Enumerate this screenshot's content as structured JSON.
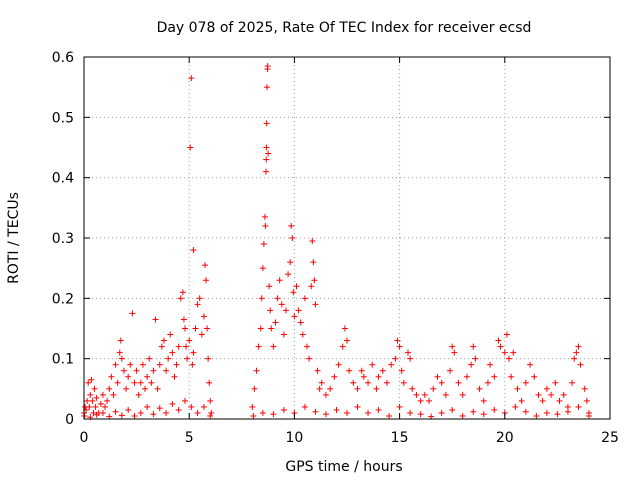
{
  "chart_data": {
    "type": "scatter",
    "title": "Day 078 of 2025, Rate Of TEC Index for receiver ecsd",
    "xlabel": "GPS time / hours",
    "ylabel": "ROTI / TECUs",
    "xlim": [
      0,
      25
    ],
    "ylim": [
      0,
      0.6
    ],
    "xticks": [
      0,
      5,
      10,
      15,
      20,
      25
    ],
    "xtick_labels": [
      "0",
      "5",
      "10",
      "15",
      "20",
      "25"
    ],
    "yticks": [
      0,
      0.1,
      0.2,
      0.3,
      0.4,
      0.5,
      0.6
    ],
    "ytick_labels": [
      "0",
      "0.1",
      "0.2",
      "0.3",
      "0.4",
      "0.5",
      "0.6"
    ],
    "grid": true,
    "marker": "+",
    "color": "#ff0000",
    "series": [
      {
        "name": "ROTI",
        "points": [
          [
            0.0,
            0.01
          ],
          [
            0.05,
            0.02
          ],
          [
            0.1,
            0.015
          ],
          [
            0.15,
            0.03
          ],
          [
            0.2,
            0.06
          ],
          [
            0.25,
            0.02
          ],
          [
            0.3,
            0.04
          ],
          [
            0.35,
            0.065
          ],
          [
            0.4,
            0.03
          ],
          [
            0.45,
            0.01
          ],
          [
            0.5,
            0.05
          ],
          [
            0.55,
            0.02
          ],
          [
            0.6,
            0.035
          ],
          [
            0.7,
            0.01
          ],
          [
            0.8,
            0.025
          ],
          [
            0.9,
            0.04
          ],
          [
            1.0,
            0.02
          ],
          [
            1.1,
            0.03
          ],
          [
            1.2,
            0.05
          ],
          [
            1.3,
            0.07
          ],
          [
            1.4,
            0.04
          ],
          [
            1.5,
            0.09
          ],
          [
            1.6,
            0.06
          ],
          [
            1.7,
            0.11
          ],
          [
            1.75,
            0.13
          ],
          [
            1.8,
            0.1
          ],
          [
            1.9,
            0.08
          ],
          [
            2.0,
            0.05
          ],
          [
            2.1,
            0.07
          ],
          [
            2.2,
            0.09
          ],
          [
            2.3,
            0.175
          ],
          [
            2.4,
            0.06
          ],
          [
            2.5,
            0.08
          ],
          [
            2.6,
            0.04
          ],
          [
            2.7,
            0.06
          ],
          [
            2.8,
            0.09
          ],
          [
            2.9,
            0.05
          ],
          [
            3.0,
            0.07
          ],
          [
            3.1,
            0.1
          ],
          [
            3.2,
            0.06
          ],
          [
            3.3,
            0.08
          ],
          [
            3.4,
            0.165
          ],
          [
            3.5,
            0.05
          ],
          [
            3.6,
            0.09
          ],
          [
            3.7,
            0.12
          ],
          [
            3.8,
            0.13
          ],
          [
            3.9,
            0.08
          ],
          [
            4.0,
            0.1
          ],
          [
            4.1,
            0.14
          ],
          [
            4.2,
            0.11
          ],
          [
            4.3,
            0.07
          ],
          [
            4.4,
            0.09
          ],
          [
            4.5,
            0.12
          ],
          [
            4.6,
            0.2
          ],
          [
            4.7,
            0.21
          ],
          [
            4.75,
            0.165
          ],
          [
            4.8,
            0.15
          ],
          [
            4.85,
            0.12
          ],
          [
            4.9,
            0.1
          ],
          [
            5.0,
            0.13
          ],
          [
            5.05,
            0.45
          ],
          [
            5.1,
            0.565
          ],
          [
            5.15,
            0.09
          ],
          [
            5.2,
            0.11
          ],
          [
            5.3,
            0.15
          ],
          [
            5.4,
            0.19
          ],
          [
            5.5,
            0.2
          ],
          [
            5.6,
            0.14
          ],
          [
            5.7,
            0.17
          ],
          [
            5.75,
            0.255
          ],
          [
            5.8,
            0.23
          ],
          [
            5.85,
            0.15
          ],
          [
            5.9,
            0.1
          ],
          [
            5.95,
            0.06
          ],
          [
            6.0,
            0.03
          ],
          [
            6.05,
            0.01
          ],
          [
            0.02,
            0.005
          ],
          [
            0.3,
            0.003
          ],
          [
            0.6,
            0.007
          ],
          [
            0.9,
            0.01
          ],
          [
            1.2,
            0.004
          ],
          [
            1.5,
            0.012
          ],
          [
            1.8,
            0.006
          ],
          [
            2.1,
            0.015
          ],
          [
            2.4,
            0.005
          ],
          [
            2.7,
            0.01
          ],
          [
            3.0,
            0.02
          ],
          [
            3.3,
            0.008
          ],
          [
            3.6,
            0.018
          ],
          [
            3.9,
            0.01
          ],
          [
            4.2,
            0.025
          ],
          [
            4.5,
            0.015
          ],
          [
            4.8,
            0.03
          ],
          [
            5.1,
            0.02
          ],
          [
            5.4,
            0.01
          ],
          [
            5.7,
            0.02
          ],
          [
            6.0,
            0.005
          ],
          [
            5.2,
            0.28
          ],
          [
            8.0,
            0.02
          ],
          [
            8.1,
            0.05
          ],
          [
            8.2,
            0.08
          ],
          [
            8.3,
            0.12
          ],
          [
            8.4,
            0.15
          ],
          [
            8.45,
            0.2
          ],
          [
            8.5,
            0.25
          ],
          [
            8.55,
            0.29
          ],
          [
            8.6,
            0.335
          ],
          [
            8.62,
            0.32
          ],
          [
            8.65,
            0.41
          ],
          [
            8.66,
            0.43
          ],
          [
            8.67,
            0.45
          ],
          [
            8.68,
            0.49
          ],
          [
            8.7,
            0.55
          ],
          [
            8.72,
            0.58
          ],
          [
            8.73,
            0.585
          ],
          [
            8.75,
            0.44
          ],
          [
            8.8,
            0.22
          ],
          [
            8.85,
            0.18
          ],
          [
            8.9,
            0.15
          ],
          [
            9.0,
            0.12
          ],
          [
            9.1,
            0.16
          ],
          [
            9.2,
            0.2
          ],
          [
            9.3,
            0.23
          ],
          [
            9.4,
            0.19
          ],
          [
            9.5,
            0.14
          ],
          [
            9.6,
            0.18
          ],
          [
            9.7,
            0.24
          ],
          [
            9.8,
            0.26
          ],
          [
            9.85,
            0.32
          ],
          [
            9.9,
            0.3
          ],
          [
            9.95,
            0.21
          ],
          [
            10.0,
            0.17
          ],
          [
            10.1,
            0.22
          ],
          [
            10.2,
            0.18
          ],
          [
            10.3,
            0.16
          ],
          [
            10.4,
            0.14
          ],
          [
            10.5,
            0.2
          ],
          [
            10.6,
            0.12
          ],
          [
            10.7,
            0.1
          ],
          [
            10.8,
            0.22
          ],
          [
            10.85,
            0.295
          ],
          [
            10.9,
            0.26
          ],
          [
            10.95,
            0.23
          ],
          [
            11.0,
            0.19
          ],
          [
            11.1,
            0.08
          ],
          [
            11.2,
            0.05
          ],
          [
            11.3,
            0.06
          ],
          [
            11.5,
            0.04
          ],
          [
            11.7,
            0.05
          ],
          [
            11.9,
            0.07
          ],
          [
            12.1,
            0.09
          ],
          [
            12.3,
            0.12
          ],
          [
            12.4,
            0.15
          ],
          [
            12.5,
            0.13
          ],
          [
            12.6,
            0.08
          ],
          [
            12.8,
            0.06
          ],
          [
            13.0,
            0.05
          ],
          [
            13.2,
            0.08
          ],
          [
            13.3,
            0.07
          ],
          [
            13.5,
            0.06
          ],
          [
            13.7,
            0.09
          ],
          [
            13.9,
            0.05
          ],
          [
            14.0,
            0.07
          ],
          [
            14.2,
            0.08
          ],
          [
            14.4,
            0.06
          ],
          [
            14.6,
            0.09
          ],
          [
            14.8,
            0.1
          ],
          [
            14.9,
            0.13
          ],
          [
            15.0,
            0.12
          ],
          [
            15.1,
            0.08
          ],
          [
            15.2,
            0.06
          ],
          [
            15.4,
            0.11
          ],
          [
            15.5,
            0.1
          ],
          [
            15.6,
            0.05
          ],
          [
            15.8,
            0.04
          ],
          [
            16.0,
            0.03
          ],
          [
            16.2,
            0.04
          ],
          [
            16.4,
            0.03
          ],
          [
            16.6,
            0.05
          ],
          [
            16.8,
            0.07
          ],
          [
            17.0,
            0.06
          ],
          [
            17.2,
            0.04
          ],
          [
            17.4,
            0.08
          ],
          [
            17.5,
            0.12
          ],
          [
            17.6,
            0.11
          ],
          [
            17.8,
            0.06
          ],
          [
            18.0,
            0.04
          ],
          [
            18.2,
            0.07
          ],
          [
            18.4,
            0.09
          ],
          [
            18.5,
            0.12
          ],
          [
            18.6,
            0.1
          ],
          [
            18.8,
            0.05
          ],
          [
            19.0,
            0.03
          ],
          [
            19.2,
            0.06
          ],
          [
            19.3,
            0.09
          ],
          [
            19.5,
            0.07
          ],
          [
            19.7,
            0.13
          ],
          [
            19.8,
            0.12
          ],
          [
            20.0,
            0.11
          ],
          [
            20.1,
            0.14
          ],
          [
            20.2,
            0.1
          ],
          [
            20.3,
            0.07
          ],
          [
            20.4,
            0.11
          ],
          [
            20.6,
            0.05
          ],
          [
            20.8,
            0.03
          ],
          [
            21.0,
            0.06
          ],
          [
            21.2,
            0.09
          ],
          [
            21.4,
            0.07
          ],
          [
            21.6,
            0.04
          ],
          [
            21.8,
            0.03
          ],
          [
            22.0,
            0.05
          ],
          [
            22.2,
            0.04
          ],
          [
            22.4,
            0.06
          ],
          [
            22.6,
            0.03
          ],
          [
            22.8,
            0.04
          ],
          [
            23.0,
            0.02
          ],
          [
            23.2,
            0.06
          ],
          [
            23.3,
            0.1
          ],
          [
            23.4,
            0.11
          ],
          [
            23.5,
            0.12
          ],
          [
            23.6,
            0.09
          ],
          [
            23.8,
            0.05
          ],
          [
            23.9,
            0.03
          ],
          [
            24.0,
            0.01
          ],
          [
            8.05,
            0.005
          ],
          [
            8.5,
            0.01
          ],
          [
            9.0,
            0.008
          ],
          [
            9.5,
            0.015
          ],
          [
            10.0,
            0.01
          ],
          [
            10.5,
            0.02
          ],
          [
            11.0,
            0.012
          ],
          [
            11.5,
            0.008
          ],
          [
            12.0,
            0.015
          ],
          [
            12.5,
            0.01
          ],
          [
            13.0,
            0.02
          ],
          [
            13.5,
            0.01
          ],
          [
            14.0,
            0.015
          ],
          [
            14.5,
            0.005
          ],
          [
            15.0,
            0.02
          ],
          [
            15.5,
            0.01
          ],
          [
            16.0,
            0.008
          ],
          [
            16.5,
            0.004
          ],
          [
            17.0,
            0.01
          ],
          [
            17.5,
            0.015
          ],
          [
            18.0,
            0.005
          ],
          [
            18.5,
            0.012
          ],
          [
            19.0,
            0.008
          ],
          [
            19.5,
            0.015
          ],
          [
            20.0,
            0.01
          ],
          [
            20.5,
            0.02
          ],
          [
            21.0,
            0.012
          ],
          [
            21.5,
            0.005
          ],
          [
            22.0,
            0.01
          ],
          [
            22.5,
            0.008
          ],
          [
            23.0,
            0.012
          ],
          [
            23.5,
            0.02
          ],
          [
            24.0,
            0.005
          ]
        ]
      }
    ]
  }
}
